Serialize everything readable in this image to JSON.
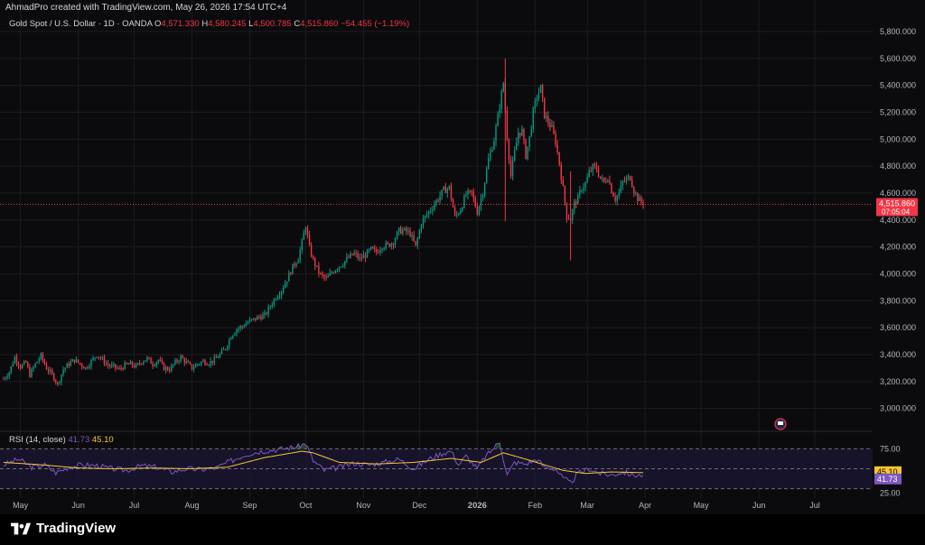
{
  "header": {
    "caption": "AhmadPro created with TradingView.com, May 26, 2026 17:54 UTC+4"
  },
  "legend": {
    "symbol": "Gold Spot / U.S. Dollar · 1D · OANDA",
    "open_label": "O",
    "open": "4,571.330",
    "high_label": "H",
    "high": "4,580.245",
    "low_label": "L",
    "low": "4,500.785",
    "close_label": "C",
    "close": "4,515.860",
    "change": "−54.455 (−1.19%)"
  },
  "price_tag": {
    "price": "4,515.860",
    "countdown": "07:05:04"
  },
  "rsi": {
    "label": "RSI (14, close)",
    "value": "41.73",
    "ma_value": "45.10",
    "levels": [
      "75.00",
      "25.00"
    ]
  },
  "brand": {
    "name": "TradingView"
  },
  "colors": {
    "up": "#089981",
    "down": "#f23645",
    "rsi_line": "#7e57c2",
    "rsi_ma": "#f7c631",
    "background": "#0b0b0d"
  },
  "chart_data": {
    "type": "candlestick",
    "ylim": [
      2850,
      5900
    ],
    "y_ticks": [
      "5,800.000",
      "5,600.000",
      "5,400.000",
      "5,200.000",
      "5,000.000",
      "4,800.000",
      "4,600.000",
      "4,400.000",
      "4,200.000",
      "4,000.000",
      "3,800.000",
      "3,600.000",
      "3,400.000",
      "3,200.000",
      "3,000.000"
    ],
    "y_tick_values": [
      5800,
      5600,
      5400,
      5200,
      5000,
      4800,
      4600,
      4400,
      4200,
      4000,
      3800,
      3600,
      3400,
      3200,
      3000
    ],
    "x_ticks": [
      "May",
      "Jun",
      "Jul",
      "Aug",
      "Sep",
      "Oct",
      "Nov",
      "Dec",
      "2026",
      "Feb",
      "Mar",
      "Apr",
      "May",
      "Jun",
      "Jul"
    ],
    "x_tick_days": [
      9,
      40,
      70,
      101,
      132,
      162,
      193,
      223,
      254,
      285,
      313,
      344,
      374,
      405,
      435
    ],
    "x_range_days": [
      0,
      466
    ],
    "last_price": 4515.86,
    "price_anchors": [
      [
        0,
        3220
      ],
      [
        3,
        3270
      ],
      [
        6,
        3380
      ],
      [
        9,
        3310
      ],
      [
        12,
        3340
      ],
      [
        14,
        3250
      ],
      [
        17,
        3330
      ],
      [
        20,
        3390
      ],
      [
        23,
        3300
      ],
      [
        26,
        3250
      ],
      [
        29,
        3180
      ],
      [
        32,
        3290
      ],
      [
        35,
        3330
      ],
      [
        38,
        3360
      ],
      [
        41,
        3330
      ],
      [
        44,
        3300
      ],
      [
        47,
        3350
      ],
      [
        50,
        3400
      ],
      [
        53,
        3360
      ],
      [
        56,
        3320
      ],
      [
        59,
        3310
      ],
      [
        62,
        3290
      ],
      [
        65,
        3320
      ],
      [
        68,
        3330
      ],
      [
        71,
        3310
      ],
      [
        74,
        3350
      ],
      [
        77,
        3370
      ],
      [
        80,
        3330
      ],
      [
        83,
        3360
      ],
      [
        86,
        3300
      ],
      [
        89,
        3290
      ],
      [
        92,
        3340
      ],
      [
        95,
        3380
      ],
      [
        98,
        3340
      ],
      [
        101,
        3300
      ],
      [
        104,
        3330
      ],
      [
        107,
        3350
      ],
      [
        110,
        3340
      ],
      [
        113,
        3360
      ],
      [
        116,
        3400
      ],
      [
        119,
        3450
      ],
      [
        122,
        3540
      ],
      [
        125,
        3590
      ],
      [
        128,
        3610
      ],
      [
        131,
        3640
      ],
      [
        134,
        3660
      ],
      [
        137,
        3680
      ],
      [
        140,
        3690
      ],
      [
        143,
        3760
      ],
      [
        146,
        3830
      ],
      [
        149,
        3880
      ],
      [
        152,
        3960
      ],
      [
        155,
        4050
      ],
      [
        158,
        4120
      ],
      [
        160,
        4230
      ],
      [
        162,
        4360
      ],
      [
        164,
        4190
      ],
      [
        166,
        4100
      ],
      [
        168,
        4040
      ],
      [
        170,
        3990
      ],
      [
        173,
        3960
      ],
      [
        176,
        4010
      ],
      [
        179,
        4050
      ],
      [
        182,
        4080
      ],
      [
        185,
        4120
      ],
      [
        188,
        4150
      ],
      [
        191,
        4110
      ],
      [
        194,
        4140
      ],
      [
        197,
        4180
      ],
      [
        200,
        4160
      ],
      [
        203,
        4210
      ],
      [
        206,
        4210
      ],
      [
        209,
        4240
      ],
      [
        212,
        4320
      ],
      [
        215,
        4320
      ],
      [
        218,
        4300
      ],
      [
        221,
        4200
      ],
      [
        224,
        4380
      ],
      [
        227,
        4440
      ],
      [
        230,
        4500
      ],
      [
        233,
        4560
      ],
      [
        236,
        4620
      ],
      [
        239,
        4640
      ],
      [
        242,
        4420
      ],
      [
        245,
        4480
      ],
      [
        248,
        4590
      ],
      [
        251,
        4600
      ],
      [
        254,
        4460
      ],
      [
        257,
        4610
      ],
      [
        260,
        4850
      ],
      [
        263,
        5000
      ],
      [
        266,
        5250
      ],
      [
        268,
        5420
      ],
      [
        270,
        5020
      ],
      [
        272,
        4730
      ],
      [
        274,
        4900
      ],
      [
        276,
        5050
      ],
      [
        278,
        5060
      ],
      [
        280,
        4880
      ],
      [
        282,
        5010
      ],
      [
        284,
        5200
      ],
      [
        286,
        5320
      ],
      [
        288,
        5380
      ],
      [
        290,
        5180
      ],
      [
        292,
        5130
      ],
      [
        294,
        5080
      ],
      [
        296,
        4980
      ],
      [
        298,
        4820
      ],
      [
        300,
        4630
      ],
      [
        302,
        4430
      ],
      [
        304,
        4410
      ],
      [
        306,
        4520
      ],
      [
        308,
        4560
      ],
      [
        310,
        4640
      ],
      [
        312,
        4670
      ],
      [
        314,
        4750
      ],
      [
        316,
        4790
      ],
      [
        318,
        4780
      ],
      [
        320,
        4710
      ],
      [
        322,
        4680
      ],
      [
        324,
        4720
      ],
      [
        326,
        4620
      ],
      [
        328,
        4560
      ],
      [
        330,
        4600
      ],
      [
        332,
        4680
      ],
      [
        334,
        4700
      ],
      [
        336,
        4720
      ],
      [
        338,
        4620
      ],
      [
        340,
        4560
      ],
      [
        342,
        4530
      ],
      [
        343,
        4515.86
      ]
    ],
    "rsi": {
      "ylim": [
        20,
        80
      ],
      "levels": [
        75,
        50,
        25
      ],
      "anchors": [
        [
          0,
          55
        ],
        [
          8,
          62
        ],
        [
          15,
          52
        ],
        [
          22,
          55
        ],
        [
          28,
          45
        ],
        [
          35,
          52
        ],
        [
          42,
          55
        ],
        [
          50,
          54
        ],
        [
          58,
          50
        ],
        [
          66,
          48
        ],
        [
          74,
          54
        ],
        [
          82,
          52
        ],
        [
          90,
          46
        ],
        [
          98,
          50
        ],
        [
          106,
          49
        ],
        [
          114,
          51
        ],
        [
          122,
          60
        ],
        [
          130,
          68
        ],
        [
          138,
          72
        ],
        [
          146,
          74
        ],
        [
          152,
          76
        ],
        [
          158,
          78
        ],
        [
          162,
          82
        ],
        [
          166,
          60
        ],
        [
          172,
          48
        ],
        [
          180,
          52
        ],
        [
          188,
          57
        ],
        [
          196,
          55
        ],
        [
          204,
          58
        ],
        [
          212,
          62
        ],
        [
          220,
          50
        ],
        [
          228,
          62
        ],
        [
          236,
          70
        ],
        [
          240,
          72
        ],
        [
          244,
          55
        ],
        [
          248,
          66
        ],
        [
          254,
          50
        ],
        [
          258,
          64
        ],
        [
          262,
          74
        ],
        [
          266,
          84
        ],
        [
          270,
          42
        ],
        [
          274,
          58
        ],
        [
          280,
          56
        ],
        [
          286,
          62
        ],
        [
          290,
          52
        ],
        [
          296,
          50
        ],
        [
          300,
          38
        ],
        [
          304,
          32
        ],
        [
          308,
          44
        ],
        [
          314,
          50
        ],
        [
          320,
          44
        ],
        [
          326,
          42
        ],
        [
          332,
          46
        ],
        [
          338,
          42
        ],
        [
          343,
          41.73
        ]
      ],
      "ma_anchors": [
        [
          0,
          58
        ],
        [
          20,
          55
        ],
        [
          40,
          51
        ],
        [
          60,
          50
        ],
        [
          80,
          51
        ],
        [
          100,
          50
        ],
        [
          120,
          52
        ],
        [
          140,
          64
        ],
        [
          160,
          72
        ],
        [
          166,
          70
        ],
        [
          180,
          58
        ],
        [
          200,
          56
        ],
        [
          220,
          58
        ],
        [
          240,
          63
        ],
        [
          256,
          58
        ],
        [
          268,
          70
        ],
        [
          280,
          62
        ],
        [
          300,
          48
        ],
        [
          312,
          44
        ],
        [
          326,
          46
        ],
        [
          343,
          45.1
        ]
      ]
    }
  }
}
